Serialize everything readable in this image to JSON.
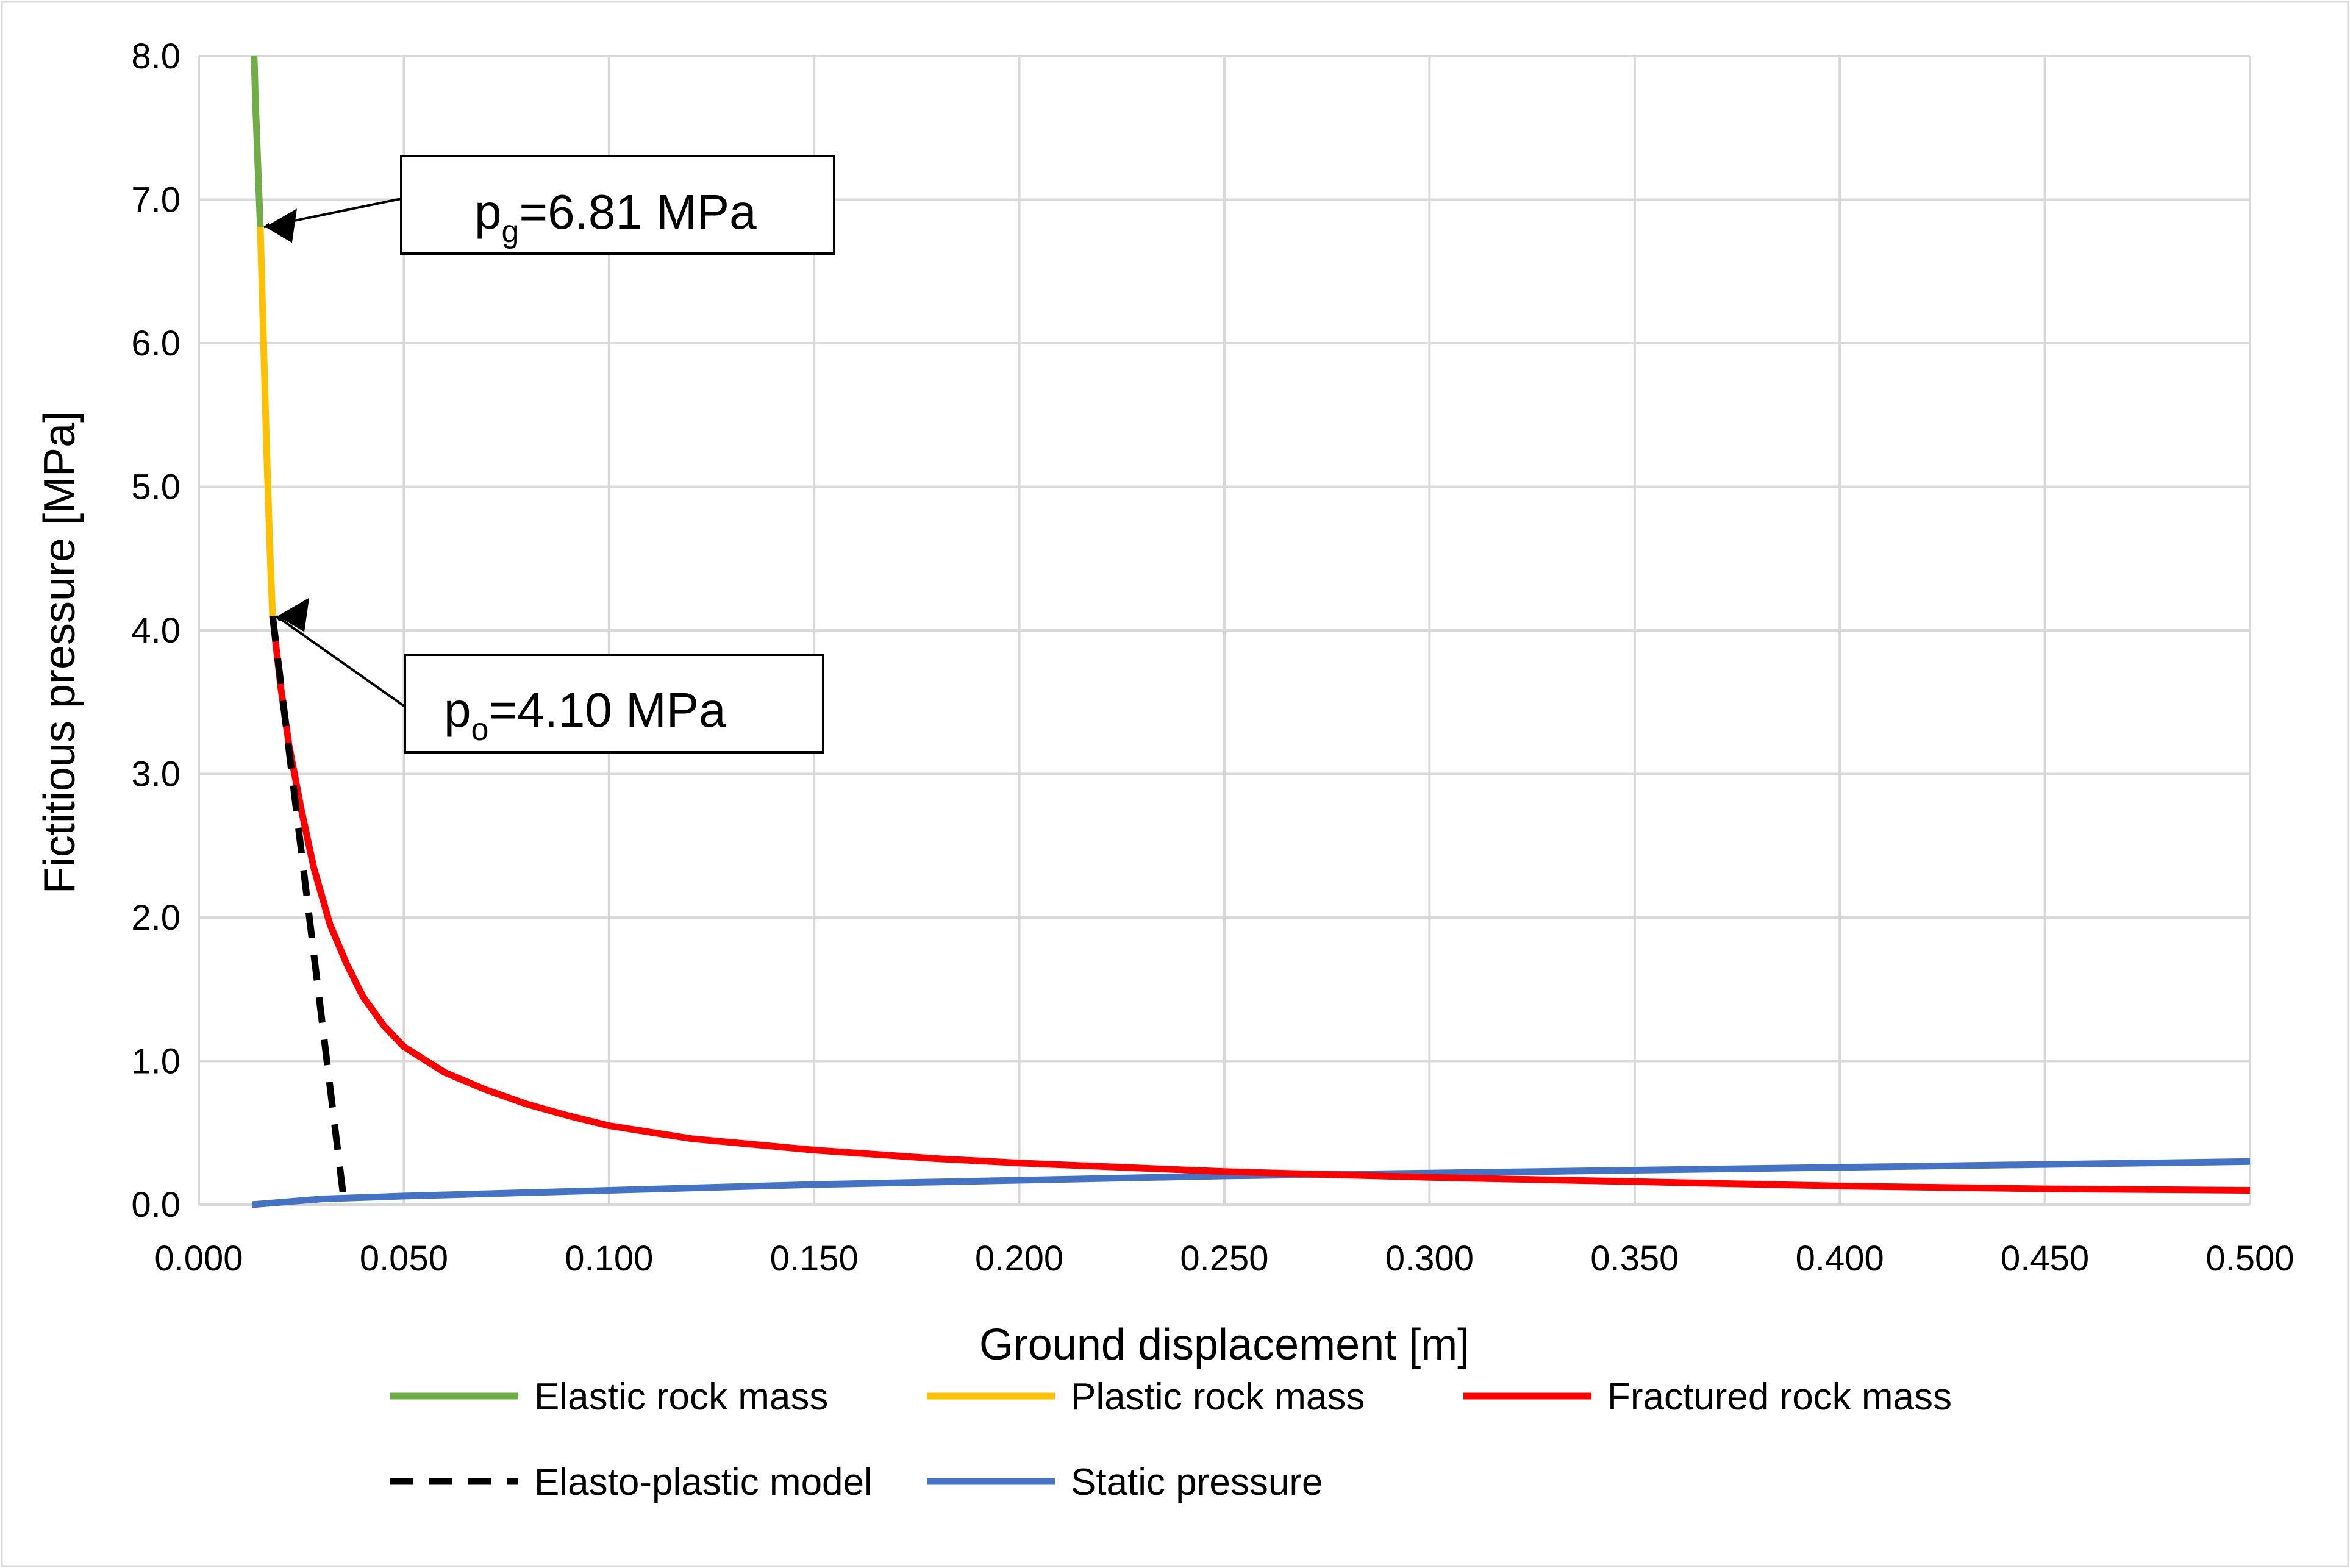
{
  "chart_data": {
    "type": "line",
    "xlabel": "Ground displacement [m]",
    "ylabel": "Fictitious pressure [MPa]",
    "xlim": [
      0.0,
      0.5
    ],
    "ylim": [
      0.0,
      8.0
    ],
    "grid": true,
    "legend_position": "bottom",
    "x_ticks": [
      "0.000",
      "0.050",
      "0.100",
      "0.150",
      "0.200",
      "0.250",
      "0.300",
      "0.350",
      "0.400",
      "0.450",
      "0.500"
    ],
    "y_ticks": [
      "0.0",
      "1.0",
      "2.0",
      "3.0",
      "4.0",
      "5.0",
      "6.0",
      "7.0",
      "8.0"
    ],
    "series": [
      {
        "name": "Elastic rock mass",
        "color": "#70ad47",
        "style": "solid",
        "x": [
          0.0135,
          0.0138,
          0.0142,
          0.0146,
          0.015
        ],
        "y": [
          8.0,
          7.7,
          7.4,
          7.1,
          6.81
        ]
      },
      {
        "name": "Plastic rock mass",
        "color": "#ffc000",
        "style": "solid",
        "x": [
          0.015,
          0.0155,
          0.016,
          0.0165,
          0.017,
          0.0175,
          0.018
        ],
        "y": [
          6.81,
          6.3,
          5.8,
          5.3,
          4.85,
          4.45,
          4.1
        ]
      },
      {
        "name": "Fractured rock mass",
        "color": "#ff0000",
        "style": "solid",
        "x": [
          0.018,
          0.02,
          0.022,
          0.025,
          0.028,
          0.032,
          0.036,
          0.04,
          0.045,
          0.05,
          0.06,
          0.07,
          0.08,
          0.09,
          0.1,
          0.12,
          0.15,
          0.18,
          0.2,
          0.25,
          0.3,
          0.35,
          0.4,
          0.45,
          0.5
        ],
        "y": [
          4.1,
          3.6,
          3.2,
          2.75,
          2.35,
          1.95,
          1.68,
          1.45,
          1.25,
          1.1,
          0.92,
          0.8,
          0.7,
          0.62,
          0.55,
          0.46,
          0.38,
          0.32,
          0.29,
          0.23,
          0.19,
          0.16,
          0.13,
          0.11,
          0.1
        ]
      },
      {
        "name": "Elasto-plastic model",
        "color": "#000000",
        "style": "dashed",
        "x": [
          0.018,
          0.0355
        ],
        "y": [
          4.1,
          0.0
        ]
      },
      {
        "name": "Static pressure",
        "color": "#4472c4",
        "style": "solid",
        "x": [
          0.013,
          0.03,
          0.05,
          0.1,
          0.15,
          0.2,
          0.25,
          0.3,
          0.35,
          0.4,
          0.45,
          0.5
        ],
        "y": [
          0.0,
          0.04,
          0.06,
          0.1,
          0.14,
          0.17,
          0.2,
          0.22,
          0.24,
          0.26,
          0.28,
          0.3
        ]
      }
    ],
    "annotations": [
      {
        "label_main": "p",
        "label_sub": "g",
        "label_rest": "=6.81 MPa",
        "point_x": 0.015,
        "point_y": 6.81
      },
      {
        "label_main": "p",
        "label_sub": "o",
        "label_rest": "=4.10 MPa",
        "point_x": 0.018,
        "point_y": 4.1
      }
    ]
  }
}
